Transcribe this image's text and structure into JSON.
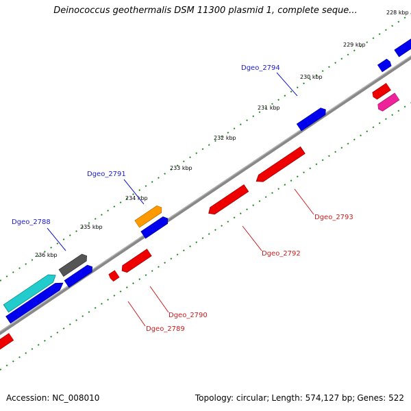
{
  "header": {
    "title": "Deinococcus geothermalis DSM 11300 plasmid 1, complete seque..."
  },
  "footer": {
    "accession": "Accession: NC_008010",
    "topology": "Topology: circular;",
    "length": "Length: 574,127 bp;",
    "genes": "Genes: 522"
  },
  "colors": {
    "backbone": "#808080",
    "tick": "#1a8a1a",
    "forward_label": "#1a1acc",
    "reverse_label": "#cc1a1a",
    "blue": "#0000ee",
    "red": "#ee0000",
    "orange": "#ff9900",
    "gray": "#555555",
    "cyan": "#22cccc",
    "magenta": "#ee2299"
  },
  "ticks": [
    "228 kbp",
    "229 kbp",
    "230 kbp",
    "231 kbp",
    "232 kbp",
    "233 kbp",
    "234 kbp",
    "235 kbp",
    "236 kbp"
  ],
  "gene_labels": {
    "forward": [
      "Dgeo_2794",
      "Dgeo_2791",
      "Dgeo_2788"
    ],
    "reverse": [
      "Dgeo_2793",
      "Dgeo_2792",
      "Dgeo_2790",
      "Dgeo_2789"
    ]
  }
}
